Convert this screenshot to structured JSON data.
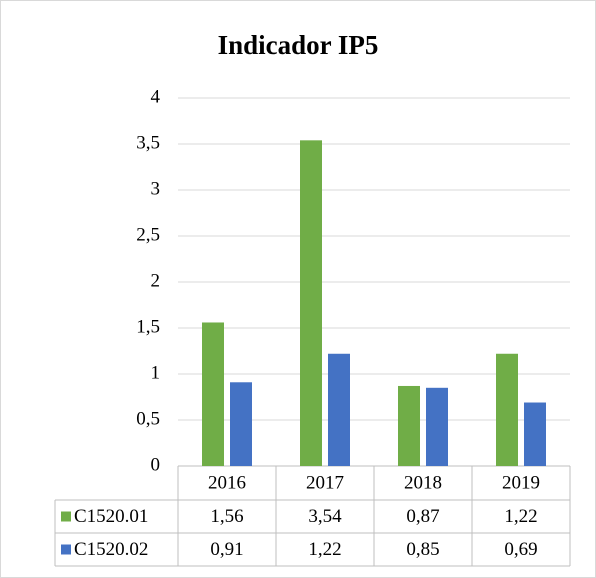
{
  "chart_data": {
    "type": "bar",
    "title": "Indicador IP5",
    "categories": [
      "2016",
      "2017",
      "2018",
      "2019"
    ],
    "series": [
      {
        "name": "C1520.01",
        "color": "#70ad47",
        "values": [
          1.56,
          3.54,
          0.87,
          1.22
        ],
        "value_labels": [
          "1,56",
          "3,54",
          "0,87",
          "1,22"
        ]
      },
      {
        "name": "C1520.02",
        "color": "#4472c4",
        "values": [
          0.91,
          1.22,
          0.85,
          0.69
        ],
        "value_labels": [
          "0,91",
          "1,22",
          "0,85",
          "0,69"
        ]
      }
    ],
    "ylim": [
      0,
      4
    ],
    "yticks": [
      0,
      {
        "value": 0.5,
        "label": "0,5"
      },
      1,
      {
        "value": 1.5,
        "label": "1,5"
      },
      2,
      {
        "value": 2.5,
        "label": "2,5"
      },
      3,
      {
        "value": 3.5,
        "label": "3,5"
      },
      4
    ],
    "grid": true
  }
}
